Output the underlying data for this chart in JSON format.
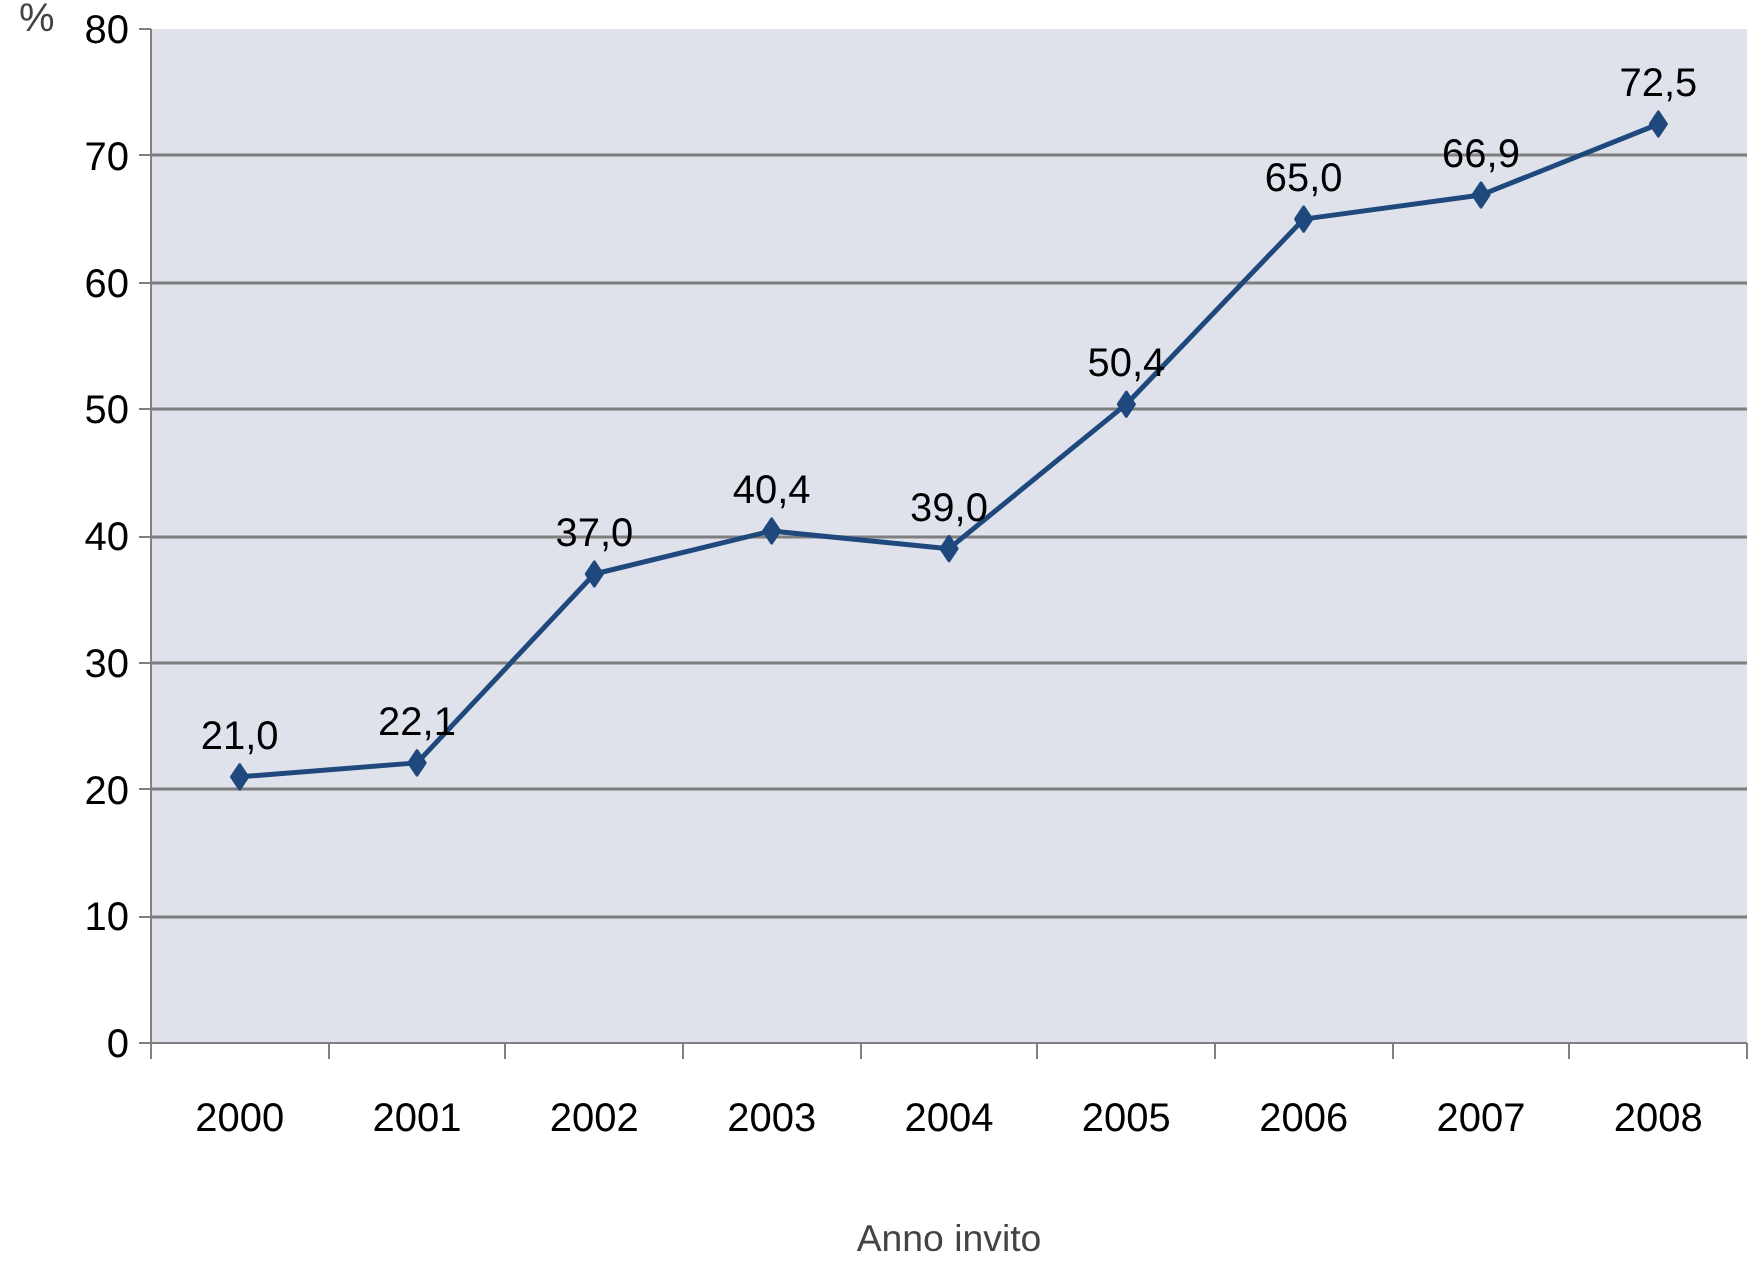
{
  "chart_data": {
    "type": "line",
    "xlabel": "Anno invito",
    "ylabel": "%",
    "categories": [
      "2000",
      "2001",
      "2002",
      "2003",
      "2004",
      "2005",
      "2006",
      "2007",
      "2008"
    ],
    "series": [
      {
        "color": "#1f497d",
        "values": [
          21.0,
          22.1,
          37.0,
          40.4,
          39.0,
          50.4,
          65.0,
          66.9,
          72.5
        ],
        "value_labels": [
          "21,0",
          "22,1",
          "37,0",
          "40,4",
          "39,0",
          "50,4",
          "65,0",
          "66,9",
          "72,5"
        ]
      }
    ],
    "ylim": [
      0,
      80
    ],
    "yticks": [
      0,
      10,
      20,
      30,
      40,
      50,
      60,
      70,
      80
    ],
    "grid": "y",
    "marker": "diamond",
    "line_style": "solid"
  }
}
